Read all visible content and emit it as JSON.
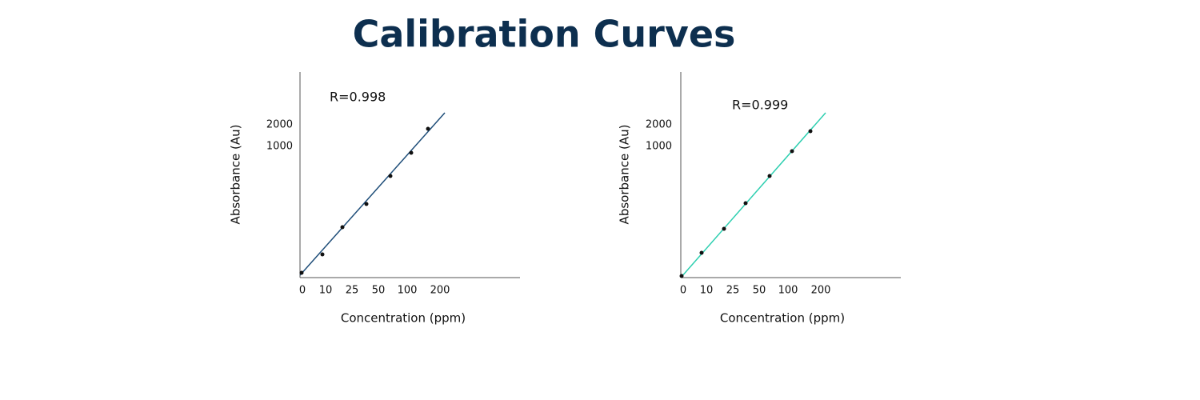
{
  "title": "Calibration Curves",
  "panels": [
    {
      "annotation": "R=0.998",
      "y_label": "Absorbance (Au)",
      "x_label": "Concentration (ppm)",
      "y_tick_labels": [
        "2000",
        "1000"
      ],
      "x_tick_labels": [
        "0",
        "10",
        "25",
        "50",
        "100",
        "200"
      ]
    },
    {
      "annotation": "R=0.999",
      "y_label": "Absorbance (Au)",
      "x_label": "Concentration (ppm)",
      "y_tick_labels": [
        "2000",
        "1000"
      ],
      "x_tick_labels": [
        "0",
        "10",
        "25",
        "50",
        "100",
        "200"
      ]
    }
  ]
}
